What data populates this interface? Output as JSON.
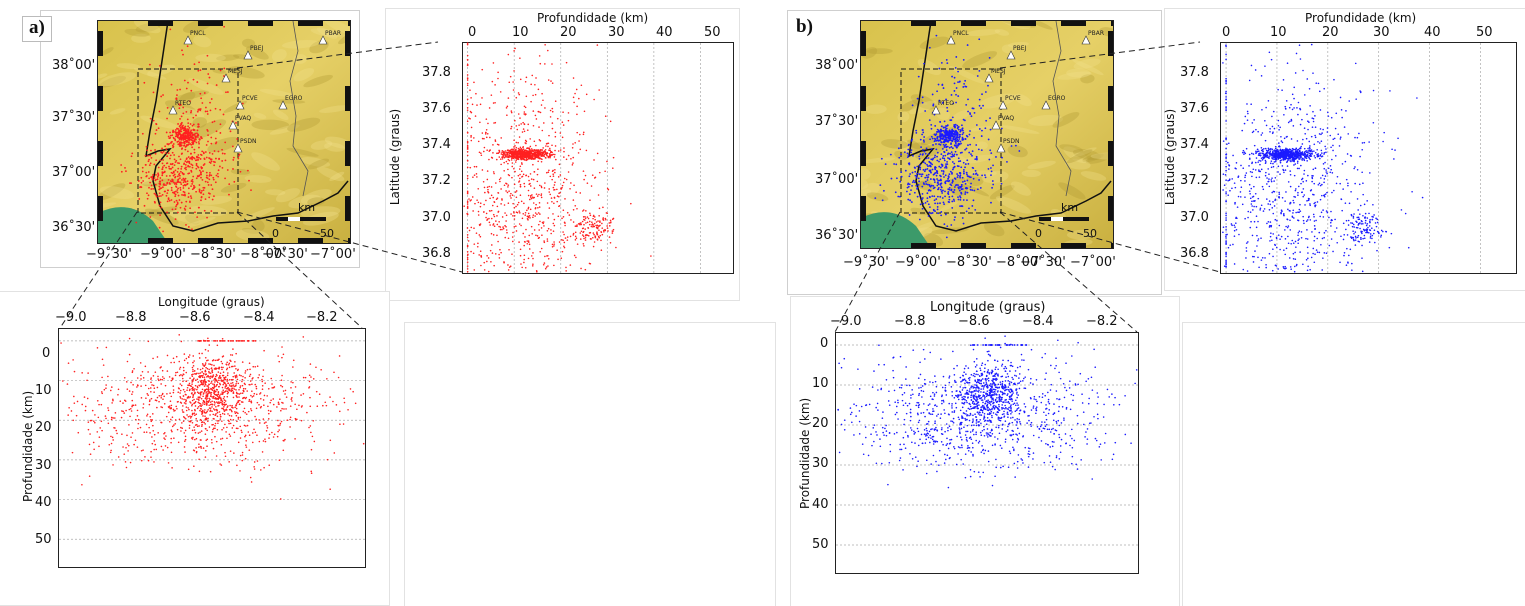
{
  "panels": [
    {
      "label": "a)",
      "color": "#ff2020",
      "map_lon_ticks": [
        "−9˚30'",
        "−9˚00'",
        "−8˚30'",
        "−8˚00'",
        "−7˚30'",
        "−7˚00'"
      ],
      "map_lat_ticks": [
        "38˚00'",
        "37˚30'",
        "37˚00'",
        "36˚30'"
      ],
      "scale_unit": "km",
      "scale_ticks": [
        "0",
        "50"
      ],
      "stations": [
        "PNCL",
        "PBEJ",
        "PBAR",
        "MESJ",
        "PCVE",
        "EGRO",
        "RTEO",
        "PVAQ",
        "PSDN"
      ]
    },
    {
      "label": "b)",
      "color": "#1a1aff",
      "map_lon_ticks": [
        "−9˚30'",
        "−9˚00'",
        "−8˚30'",
        "−8˚00'",
        "−7˚30'",
        "−7˚00'"
      ],
      "map_lat_ticks": [
        "38˚00'",
        "37˚30'",
        "37˚00'",
        "36˚30'"
      ],
      "scale_unit": "km",
      "scale_ticks": [
        "0",
        "50"
      ],
      "stations": [
        "PNCL",
        "PBEJ",
        "PBAR",
        "MESJ",
        "PCVE",
        "EGRO",
        "RTEO",
        "PVAQ",
        "PSDN"
      ]
    }
  ],
  "depth_lat_plot": {
    "xlabel": "Profundidade (km)",
    "ylabel": "Latitude (graus)",
    "x_ticks": [
      "0",
      "10",
      "20",
      "30",
      "40",
      "50"
    ],
    "y_ticks": [
      "37.8",
      "37.6",
      "37.4",
      "37.2",
      "37.0",
      "36.8"
    ]
  },
  "lon_depth_plot": {
    "xlabel": "Longitude (graus)",
    "ylabel": "Profundidade (km)",
    "x_ticks": [
      "−9.0",
      "−8.8",
      "−8.6",
      "−8.4",
      "−8.2"
    ],
    "y_ticks": [
      "0",
      "10",
      "20",
      "30",
      "40",
      "50"
    ]
  },
  "chart_data": [
    {
      "type": "scatter",
      "panel": "a",
      "xlabel": "Profundidade (km)",
      "ylabel": "Latitude (graus)",
      "xlim": [
        -1,
        57
      ],
      "ylim": [
        36.67,
        37.93
      ],
      "clusters": [
        {
          "x": 12,
          "y": 37.32,
          "sx": 2.5,
          "sy": 0.015,
          "n": 600
        },
        {
          "x": 12,
          "y": 37.1,
          "sx": 8,
          "sy": 0.35,
          "n": 900
        },
        {
          "x": 27,
          "y": 36.92,
          "sx": 2,
          "sy": 0.05,
          "n": 120
        }
      ]
    },
    {
      "type": "scatter",
      "panel": "a",
      "xlabel": "Longitude (graus)",
      "ylabel": "Profundidade (km)",
      "xlim": [
        -9.05,
        -8.1
      ],
      "ylim": [
        57,
        -3
      ],
      "clusters": [
        {
          "x": -8.57,
          "y": 12,
          "sx": 0.05,
          "sy": 4,
          "n": 500
        },
        {
          "x": -8.6,
          "y": 17,
          "sx": 0.2,
          "sy": 7,
          "n": 900
        }
      ]
    },
    {
      "type": "scatter",
      "panel": "b",
      "xlabel": "Profundidade (km)",
      "ylabel": "Latitude (graus)",
      "xlim": [
        -1,
        57
      ],
      "ylim": [
        36.67,
        37.93
      ],
      "clusters": [
        {
          "x": 12,
          "y": 37.32,
          "sx": 2.5,
          "sy": 0.015,
          "n": 600
        },
        {
          "x": 12,
          "y": 37.1,
          "sx": 8,
          "sy": 0.35,
          "n": 900
        },
        {
          "x": 27,
          "y": 36.92,
          "sx": 2,
          "sy": 0.05,
          "n": 120
        }
      ]
    },
    {
      "type": "scatter",
      "panel": "b",
      "xlabel": "Longitude (graus)",
      "ylabel": "Profundidade (km)",
      "xlim": [
        -9.05,
        -8.1
      ],
      "ylim": [
        57,
        -3
      ],
      "clusters": [
        {
          "x": -8.57,
          "y": 12,
          "sx": 0.05,
          "sy": 4,
          "n": 500
        },
        {
          "x": -8.6,
          "y": 17,
          "sx": 0.2,
          "sy": 7,
          "n": 900
        }
      ]
    }
  ]
}
